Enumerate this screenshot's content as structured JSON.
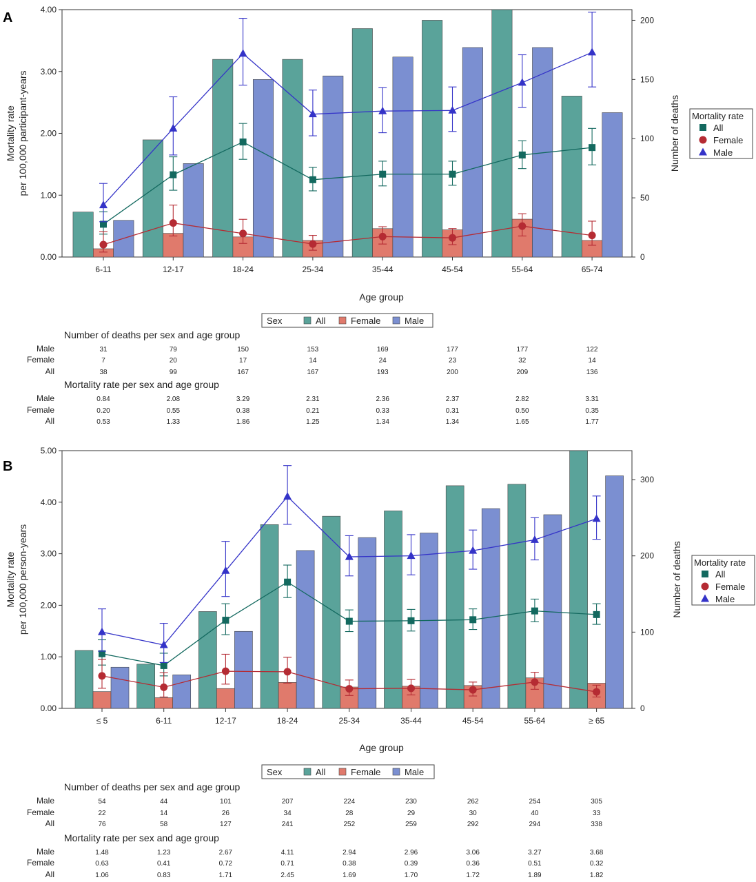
{
  "chart_data": [
    {
      "panel": "A",
      "type": "bar",
      "categories": [
        "6-11",
        "12-17",
        "18-24",
        "25-34",
        "35-44",
        "45-54",
        "55-64",
        "65-74"
      ],
      "xlabel": "Age group",
      "ylabel_lines": [
        "Mortality rate",
        "per 100,000 participant-years"
      ],
      "y2label": "Number of deaths",
      "ylim": [
        0,
        4
      ],
      "yticks": [
        "0.00",
        "1.00",
        "2.00",
        "3.00",
        "4.00"
      ],
      "y2lim": [
        0,
        209
      ],
      "y2ticks": [
        "0",
        "50",
        "100",
        "150",
        "200"
      ],
      "bar_series": [
        {
          "name": "All",
          "color": "#5aa39a",
          "values": [
            38,
            99,
            167,
            167,
            193,
            200,
            209,
            136
          ]
        },
        {
          "name": "Female",
          "color": "#e07a6c",
          "values": [
            7,
            20,
            17,
            14,
            24,
            23,
            32,
            14
          ]
        },
        {
          "name": "Male",
          "color": "#7b8fd1",
          "values": [
            31,
            79,
            150,
            153,
            169,
            177,
            177,
            122
          ]
        }
      ],
      "line_series": [
        {
          "name": "All",
          "color": "#13695f",
          "marker": "square",
          "values": [
            0.53,
            1.33,
            1.86,
            1.25,
            1.34,
            1.34,
            1.65,
            1.77
          ],
          "ci_low": [
            0.37,
            1.08,
            1.58,
            1.07,
            1.15,
            1.16,
            1.43,
            1.49
          ],
          "ci_high": [
            0.73,
            1.62,
            2.16,
            1.45,
            1.55,
            1.55,
            1.88,
            2.08
          ]
        },
        {
          "name": "Female",
          "color": "#b52b33",
          "marker": "circle",
          "values": [
            0.2,
            0.55,
            0.38,
            0.21,
            0.33,
            0.31,
            0.5,
            0.35
          ],
          "ci_low": [
            0.08,
            0.34,
            0.22,
            0.11,
            0.21,
            0.2,
            0.34,
            0.19
          ],
          "ci_high": [
            0.41,
            0.84,
            0.61,
            0.35,
            0.49,
            0.46,
            0.7,
            0.58
          ]
        },
        {
          "name": "Male",
          "color": "#3433c8",
          "marker": "triangle",
          "values": [
            0.84,
            2.08,
            3.29,
            2.31,
            2.36,
            2.37,
            2.82,
            3.31
          ],
          "ci_low": [
            0.57,
            1.65,
            2.78,
            1.96,
            2.01,
            2.03,
            2.42,
            2.75
          ],
          "ci_high": [
            1.19,
            2.59,
            3.86,
            2.7,
            2.74,
            2.75,
            3.27,
            3.96
          ]
        }
      ],
      "legend": {
        "title": "Mortality rate",
        "items": [
          "All",
          "Female",
          "Male"
        ]
      },
      "bar_legend": {
        "title": "Sex",
        "items": [
          "All",
          "Female",
          "Male"
        ]
      },
      "table_deaths": {
        "title": "Number of deaths per sex and age group",
        "rows": [
          {
            "label": "Male",
            "values": [
              "31",
              "79",
              "150",
              "153",
              "169",
              "177",
              "177",
              "122"
            ]
          },
          {
            "label": "Female",
            "values": [
              "7",
              "20",
              "17",
              "14",
              "24",
              "23",
              "32",
              "14"
            ]
          },
          {
            "label": "All",
            "values": [
              "38",
              "99",
              "167",
              "167",
              "193",
              "200",
              "209",
              "136"
            ]
          }
        ]
      },
      "table_rates": {
        "title": "Mortality rate per sex and age group",
        "rows": [
          {
            "label": "Male",
            "values": [
              "0.84",
              "2.08",
              "3.29",
              "2.31",
              "2.36",
              "2.37",
              "2.82",
              "3.31"
            ]
          },
          {
            "label": "Female",
            "values": [
              "0.20",
              "0.55",
              "0.38",
              "0.21",
              "0.33",
              "0.31",
              "0.50",
              "0.35"
            ]
          },
          {
            "label": "All",
            "values": [
              "0.53",
              "1.33",
              "1.86",
              "1.25",
              "1.34",
              "1.34",
              "1.65",
              "1.77"
            ]
          }
        ]
      }
    },
    {
      "panel": "B",
      "type": "bar",
      "categories": [
        "≤ 5",
        "6-11",
        "12-17",
        "18-24",
        "25-34",
        "35-44",
        "45-54",
        "55-64",
        "≥ 65"
      ],
      "xlabel": "Age group",
      "ylabel_lines": [
        "Mortality rate",
        "per 100,000 person-years"
      ],
      "y2label": "Number of deaths",
      "ylim": [
        0,
        5
      ],
      "yticks": [
        "0.00",
        "1.00",
        "2.00",
        "3.00",
        "4.00",
        "5.00"
      ],
      "y2lim": [
        0,
        338
      ],
      "y2ticks": [
        "0",
        "100",
        "200",
        "300"
      ],
      "bar_series": [
        {
          "name": "All",
          "color": "#5aa39a",
          "values": [
            76,
            58,
            127,
            241,
            252,
            259,
            292,
            294,
            338
          ]
        },
        {
          "name": "Female",
          "color": "#e07a6c",
          "values": [
            22,
            14,
            26,
            34,
            28,
            29,
            30,
            40,
            33
          ]
        },
        {
          "name": "Male",
          "color": "#7b8fd1",
          "values": [
            54,
            44,
            101,
            207,
            224,
            230,
            262,
            254,
            305
          ]
        }
      ],
      "line_series": [
        {
          "name": "All",
          "color": "#13695f",
          "marker": "square",
          "values": [
            1.06,
            0.83,
            1.71,
            2.45,
            1.69,
            1.7,
            1.72,
            1.89,
            1.82
          ],
          "ci_low": [
            0.84,
            0.63,
            1.43,
            2.15,
            1.49,
            1.5,
            1.53,
            1.68,
            1.63
          ],
          "ci_high": [
            1.33,
            1.07,
            2.03,
            2.78,
            1.91,
            1.92,
            1.93,
            2.12,
            2.03
          ]
        },
        {
          "name": "Female",
          "color": "#b52b33",
          "marker": "circle",
          "values": [
            0.63,
            0.41,
            0.72,
            0.71,
            0.38,
            0.39,
            0.36,
            0.51,
            0.32
          ],
          "ci_low": [
            0.39,
            0.22,
            0.47,
            0.49,
            0.25,
            0.26,
            0.24,
            0.37,
            0.22
          ],
          "ci_high": [
            0.95,
            0.69,
            1.05,
            0.99,
            0.55,
            0.56,
            0.51,
            0.7,
            0.45
          ]
        },
        {
          "name": "Male",
          "color": "#3433c8",
          "marker": "triangle",
          "values": [
            1.48,
            1.23,
            2.67,
            4.11,
            2.94,
            2.96,
            3.06,
            3.27,
            3.68
          ],
          "ci_low": [
            1.11,
            0.89,
            2.17,
            3.57,
            2.57,
            2.59,
            2.7,
            2.88,
            3.28
          ],
          "ci_high": [
            1.93,
            1.65,
            3.24,
            4.71,
            3.35,
            3.37,
            3.46,
            3.7,
            4.12
          ]
        }
      ],
      "legend": {
        "title": "Mortality rate",
        "items": [
          "All",
          "Female",
          "Male"
        ]
      },
      "bar_legend": {
        "title": "Sex",
        "items": [
          "All",
          "Female",
          "Male"
        ]
      },
      "table_deaths": {
        "title": "Number of deaths per sex and age group",
        "rows": [
          {
            "label": "Male",
            "values": [
              "54",
              "44",
              "101",
              "207",
              "224",
              "230",
              "262",
              "254",
              "305"
            ]
          },
          {
            "label": "Female",
            "values": [
              "22",
              "14",
              "26",
              "34",
              "28",
              "29",
              "30",
              "40",
              "33"
            ]
          },
          {
            "label": "All",
            "values": [
              "76",
              "58",
              "127",
              "241",
              "252",
              "259",
              "292",
              "294",
              "338"
            ]
          }
        ]
      },
      "table_rates": {
        "title": "Mortality rate per sex and age group",
        "rows": [
          {
            "label": "Male",
            "values": [
              "1.48",
              "1.23",
              "2.67",
              "4.11",
              "2.94",
              "2.96",
              "3.06",
              "3.27",
              "3.68"
            ]
          },
          {
            "label": "Female",
            "values": [
              "0.63",
              "0.41",
              "0.72",
              "0.71",
              "0.38",
              "0.39",
              "0.36",
              "0.51",
              "0.32"
            ]
          },
          {
            "label": "All",
            "values": [
              "1.06",
              "0.83",
              "1.71",
              "2.45",
              "1.69",
              "1.70",
              "1.72",
              "1.89",
              "1.82"
            ]
          }
        ]
      }
    }
  ]
}
